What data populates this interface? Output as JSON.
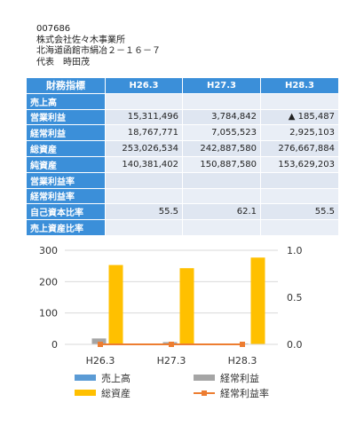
{
  "company": {
    "code": "007686",
    "name": "株式会社佐々木事業所",
    "address": "北海道函館市絹冶２－１６－７",
    "representative": "代表　時田茂"
  },
  "table": {
    "header_label": "財務指標",
    "columns": [
      "H26.3",
      "H27.3",
      "H28.3"
    ],
    "rows": [
      {
        "label": "売上高",
        "values": [
          "",
          "",
          ""
        ]
      },
      {
        "label": "営業利益",
        "values": [
          "15,311,496",
          "3,784,842",
          "▲ 185,487"
        ]
      },
      {
        "label": "経常利益",
        "values": [
          "18,767,771",
          "7,055,523",
          "2,925,103"
        ]
      },
      {
        "label": "総資産",
        "values": [
          "253,026,534",
          "242,887,580",
          "276,667,884"
        ]
      },
      {
        "label": "純資産",
        "values": [
          "140,381,402",
          "150,887,580",
          "153,629,203"
        ]
      },
      {
        "label": "営業利益率",
        "values": [
          "",
          "",
          ""
        ]
      },
      {
        "label": "経常利益率",
        "values": [
          "",
          "",
          ""
        ]
      },
      {
        "label": "自己資本比率",
        "values": [
          "55.5",
          "62.1",
          "55.5"
        ]
      },
      {
        "label": "売上資産比率",
        "values": [
          "",
          "",
          ""
        ]
      }
    ]
  },
  "chart_data": {
    "type": "bar",
    "categories": [
      "H26.3",
      "H27.3",
      "H28.3"
    ],
    "yticks_left": [
      "0",
      "100",
      "200",
      "300"
    ],
    "yticks_right": [
      "0.0",
      "0.5",
      "1.0"
    ],
    "ylim": [
      0,
      300
    ],
    "ylim_right": [
      0,
      1
    ],
    "series": [
      {
        "name": "売上高",
        "kind": "bar",
        "axis": "left",
        "color": "#5b9bd5",
        "values": [
          0,
          0,
          0
        ]
      },
      {
        "name": "経常利益",
        "kind": "bar",
        "axis": "left",
        "color": "#a5a5a5",
        "values": [
          18.8,
          7.1,
          2.9
        ]
      },
      {
        "name": "総資産",
        "kind": "bar",
        "axis": "left",
        "color": "#ffc000",
        "values": [
          253.0,
          242.9,
          276.7
        ]
      },
      {
        "name": "経常利益率",
        "kind": "line",
        "axis": "right",
        "color": "#ed7d31",
        "values": [
          0,
          0,
          0
        ]
      }
    ],
    "legend_position": "bottom"
  }
}
